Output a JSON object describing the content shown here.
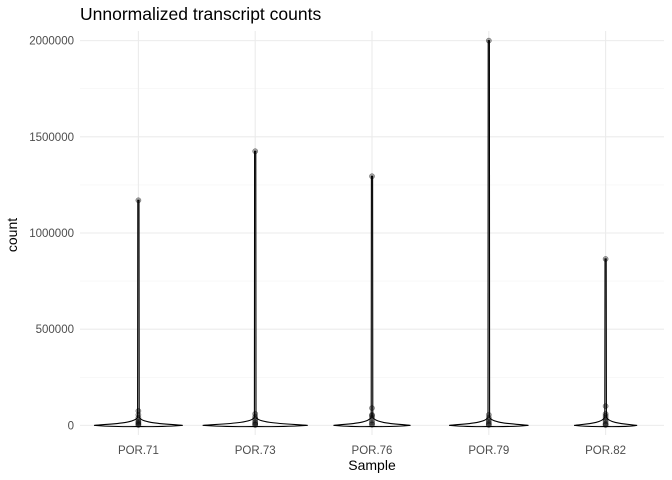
{
  "chart_data": {
    "type": "violin",
    "title": "Unnormalized transcript counts",
    "xlabel": "Sample",
    "ylabel": "count",
    "categories": [
      "POR.71",
      "POR.73",
      "POR.76",
      "POR.79",
      "POR.82"
    ],
    "yticks": [
      "0",
      "500000",
      "1000000",
      "1500000",
      "2000000"
    ],
    "ytick_values": [
      0,
      500000,
      1000000,
      1500000,
      2000000
    ],
    "ylim": [
      -50000,
      2050000
    ],
    "grid": true,
    "series": [
      {
        "category": "POR.71",
        "max": 1170000,
        "violin_halfwidth": 0.38,
        "points": [
          1170000,
          75000,
          55000,
          40000,
          30000,
          20000,
          15000,
          10000,
          5000,
          2000
        ]
      },
      {
        "category": "POR.73",
        "max": 1425000,
        "violin_halfwidth": 0.45,
        "points": [
          1425000,
          60000,
          45000,
          35000,
          25000,
          15000,
          10000,
          5000,
          2000
        ]
      },
      {
        "category": "POR.76",
        "max": 1295000,
        "violin_halfwidth": 0.33,
        "points": [
          1295000,
          90000,
          55000,
          50000,
          40000,
          25000,
          15000,
          8000,
          3000
        ]
      },
      {
        "category": "POR.79",
        "max": 2000000,
        "violin_halfwidth": 0.34,
        "points": [
          2000000,
          55000,
          40000,
          30000,
          20000,
          12000,
          6000,
          2000
        ]
      },
      {
        "category": "POR.82",
        "max": 865000,
        "violin_halfwidth": 0.27,
        "points": [
          865000,
          100000,
          60000,
          50000,
          40000,
          30000,
          20000,
          10000,
          5000,
          2000
        ]
      }
    ]
  }
}
